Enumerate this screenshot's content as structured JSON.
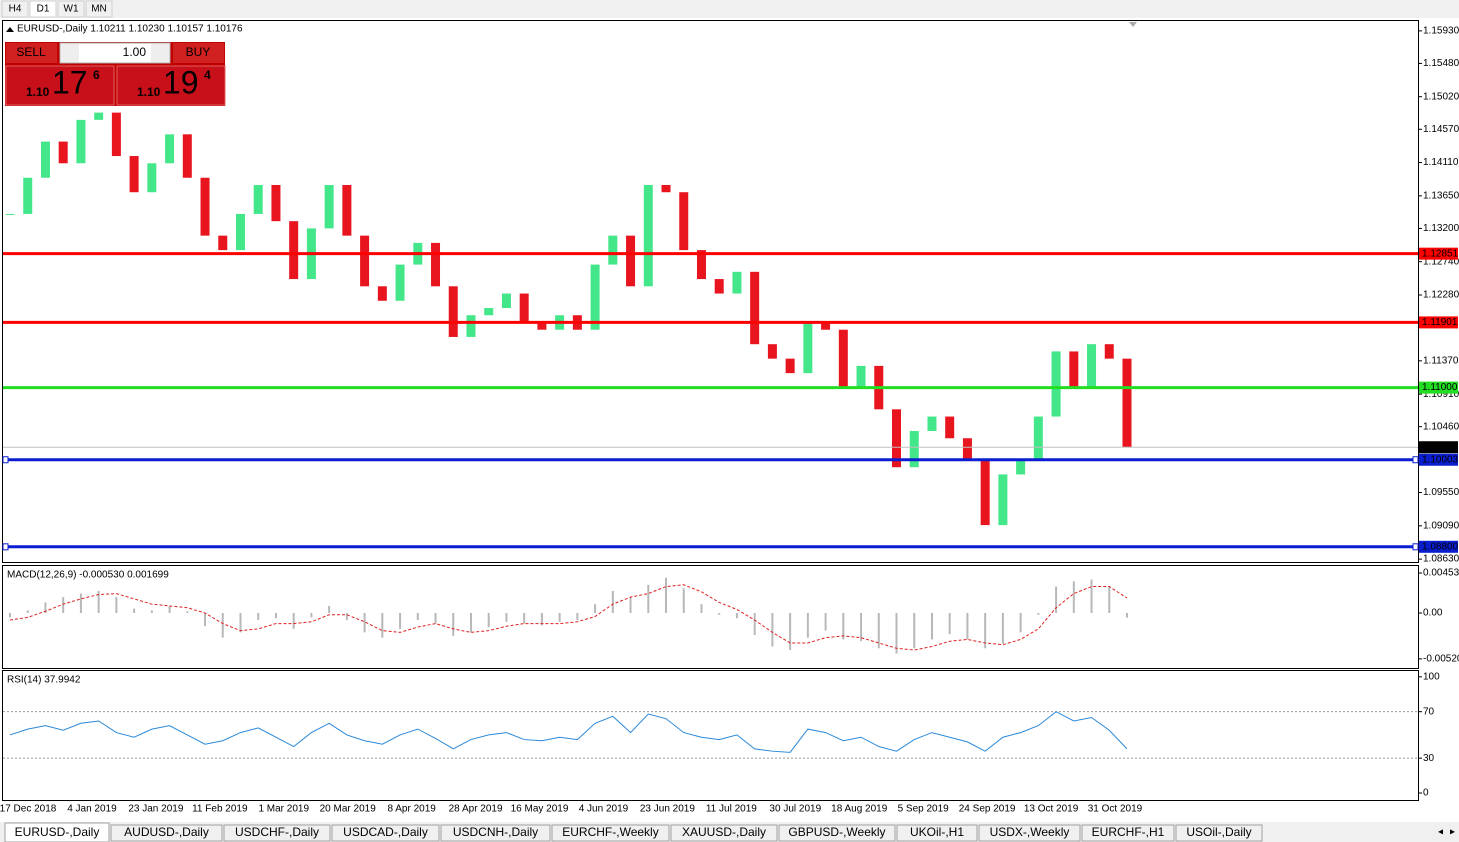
{
  "timeframes": [
    "H4",
    "D1",
    "W1",
    "MN"
  ],
  "trade_panel": {
    "sell": "SELL",
    "buy": "BUY",
    "lots": "1.00",
    "sell_price": {
      "big": "1.10",
      "main": "17",
      "pip": "6"
    },
    "buy_price": {
      "big": "1.10",
      "main": "19",
      "pip": "4"
    }
  },
  "tabs": [
    "EURUSD-,Daily",
    "AUDUSD-,Daily",
    "USDCHF-,Daily",
    "USDCAD-,Daily",
    "USDCNH-,Daily",
    "EURCHF-,Weekly",
    "XAUUSD-,Daily",
    "GBPUSD-,Weekly",
    "UKOil-,H1",
    "USDX-,Weekly",
    "EURCHF-,H1",
    "USOil-,Daily"
  ],
  "chart_data": [
    {
      "type": "candlestick",
      "title": "EURUSD-,Daily  1.10211 1.10230 1.10157 1.10176",
      "categories": [
        "17 Dec 2018",
        "4 Jan 2019",
        "23 Jan 2019",
        "11 Feb 2019",
        "1 Mar 2019",
        "20 Mar 2019",
        "8 Apr 2019",
        "28 Apr 2019",
        "16 May 2019",
        "4 Jun 2019",
        "23 Jun 2019",
        "11 Jul 2019",
        "30 Jul 2019",
        "18 Aug 2019",
        "5 Sep 2019",
        "24 Sep 2019",
        "13 Oct 2019",
        "31 Oct 2019"
      ],
      "closes": [
        1.134,
        1.139,
        1.144,
        1.141,
        1.147,
        1.148,
        1.142,
        1.137,
        1.141,
        1.145,
        1.139,
        1.131,
        1.129,
        1.134,
        1.138,
        1.133,
        1.125,
        1.132,
        1.138,
        1.131,
        1.124,
        1.122,
        1.127,
        1.13,
        1.124,
        1.117,
        1.12,
        1.121,
        1.123,
        1.119,
        1.118,
        1.12,
        1.118,
        1.127,
        1.131,
        1.124,
        1.138,
        1.137,
        1.129,
        1.125,
        1.123,
        1.126,
        1.116,
        1.114,
        1.112,
        1.119,
        1.118,
        1.11,
        1.113,
        1.107,
        1.099,
        1.104,
        1.106,
        1.103,
        1.1,
        1.091,
        1.098,
        1.1,
        1.106,
        1.115,
        1.11,
        1.116,
        1.114,
        1.1018
      ],
      "up_color": "#44e68a",
      "down_color": "#e8141e",
      "ylim": [
        1.0859,
        1.1608
      ],
      "yticks": [
        {
          "value": 1.1593,
          "label": "1.15930"
        },
        {
          "value": 1.1548,
          "label": "1.15480"
        },
        {
          "value": 1.1502,
          "label": "1.15020"
        },
        {
          "value": 1.1457,
          "label": "1.14570"
        },
        {
          "value": 1.1411,
          "label": "1.14110"
        },
        {
          "value": 1.1365,
          "label": "1.13650"
        },
        {
          "value": 1.132,
          "label": "1.13200"
        },
        {
          "value": 1.1274,
          "label": "1.12740"
        },
        {
          "value": 1.1228,
          "label": "1.12280"
        },
        {
          "value": 1.1137,
          "label": "1.11370"
        },
        {
          "value": 1.1091,
          "label": "1.10910"
        },
        {
          "value": 1.1046,
          "label": "1.10460"
        },
        {
          "value": 1.0955,
          "label": "1.09550"
        },
        {
          "value": 1.0909,
          "label": "1.09090"
        },
        {
          "value": 1.0863,
          "label": "1.08630"
        }
      ],
      "levels": [
        {
          "value": 1.12851,
          "color": "#ff0000"
        },
        {
          "value": 1.11901,
          "color": "#ff0000"
        },
        {
          "value": 1.11,
          "label": "1.11000",
          "color": "#22dd22"
        },
        {
          "value": 1.10003,
          "color": "#0a1ed0"
        },
        {
          "value": 1.088,
          "label": "1.08800",
          "color": "#0a1ed0"
        }
      ],
      "current": {
        "value": 1.10176
      }
    },
    {
      "type": "macd",
      "title": "MACD(12,26,9) -0.000530 0.001699",
      "histogram": [
        -0.0005,
        0.0003,
        0.0012,
        0.0018,
        0.0022,
        0.0025,
        0.0018,
        0.0005,
        0.0003,
        0.0008,
        0.0002,
        -0.0015,
        -0.0028,
        -0.0022,
        -0.0008,
        -0.0006,
        -0.0018,
        -0.0005,
        0.0008,
        -0.0008,
        -0.0022,
        -0.0028,
        -0.0018,
        -0.0008,
        -0.0012,
        -0.0026,
        -0.0022,
        -0.0016,
        -0.001,
        -0.0012,
        -0.0014,
        -0.001,
        -0.0008,
        0.001,
        0.0025,
        0.0018,
        0.0032,
        0.004,
        0.0028,
        0.001,
        -0.0002,
        -0.0006,
        -0.0025,
        -0.0038,
        -0.0042,
        -0.0028,
        -0.002,
        -0.003,
        -0.0032,
        -0.004,
        -0.0046,
        -0.004,
        -0.003,
        -0.0024,
        -0.003,
        -0.004,
        -0.0035,
        -0.0022,
        -0.0002,
        0.003,
        0.0036,
        0.0038,
        0.003,
        -0.00053
      ],
      "signal": [
        -0.0008,
        -0.0005,
        0.0002,
        0.001,
        0.0016,
        0.0021,
        0.0022,
        0.0016,
        0.001,
        0.0008,
        0.0006,
        0,
        -0.0012,
        -0.002,
        -0.0018,
        -0.0012,
        -0.0012,
        -0.001,
        -0.0002,
        -0.0002,
        -0.001,
        -0.002,
        -0.0022,
        -0.0016,
        -0.0012,
        -0.0018,
        -0.0022,
        -0.002,
        -0.0015,
        -0.0012,
        -0.0012,
        -0.0012,
        -0.001,
        -0.0004,
        0.001,
        0.0018,
        0.0022,
        0.003,
        0.0032,
        0.0024,
        0.0012,
        0.0004,
        -0.0008,
        -0.0022,
        -0.0034,
        -0.0034,
        -0.0028,
        -0.0026,
        -0.0028,
        -0.0034,
        -0.004,
        -0.0042,
        -0.0038,
        -0.0032,
        -0.003,
        -0.0034,
        -0.0036,
        -0.003,
        -0.0018,
        0.0006,
        0.0022,
        0.003,
        0.003,
        0.001699
      ],
      "histogram_color": "#b8b8b8",
      "signal_color": "#e02020",
      "ylim": [
        -0.00624,
        0.00533
      ],
      "yticks": [
        0.004536,
        {
          "value": 0,
          "label": "0.00"
        },
        -0.005207
      ]
    },
    {
      "type": "line",
      "title": "RSI(14) 37.9942",
      "values": [
        50,
        55,
        58,
        54,
        60,
        62,
        52,
        48,
        55,
        58,
        50,
        42,
        45,
        52,
        56,
        48,
        40,
        52,
        60,
        50,
        45,
        42,
        50,
        55,
        47,
        38,
        46,
        50,
        52,
        46,
        45,
        48,
        46,
        60,
        66,
        52,
        68,
        64,
        52,
        48,
        46,
        50,
        38,
        36,
        35,
        55,
        52,
        45,
        48,
        40,
        36,
        46,
        52,
        48,
        44,
        36,
        48,
        52,
        58,
        70,
        62,
        65,
        54,
        37.9942
      ],
      "color": "#2a88d8",
      "ylim": [
        -6,
        105
      ],
      "yticks": [
        100,
        70,
        30,
        0
      ],
      "levels": [
        70,
        30
      ]
    }
  ]
}
